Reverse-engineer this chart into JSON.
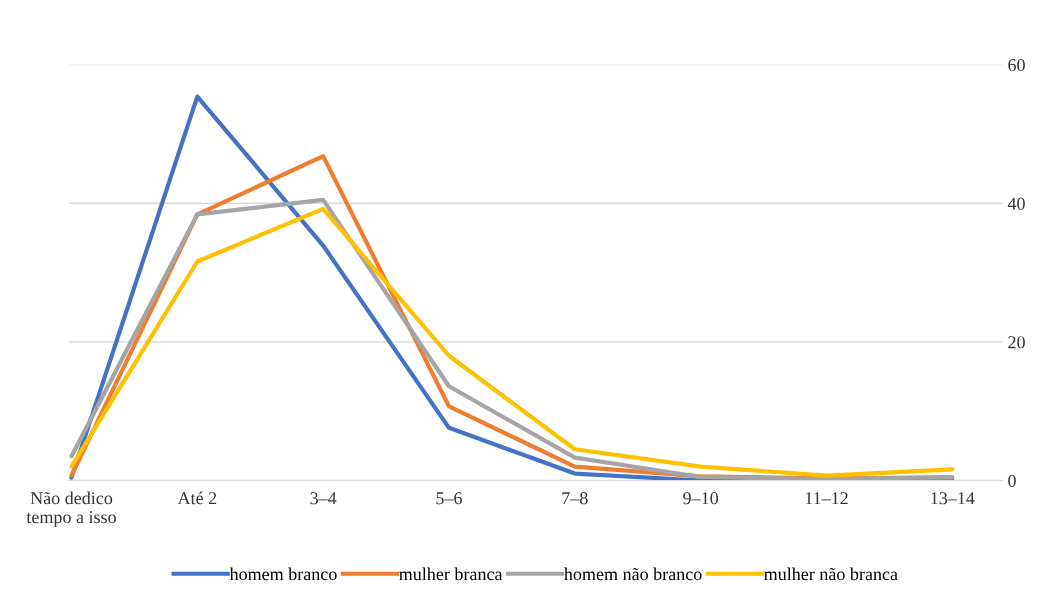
{
  "chart_data": {
    "type": "line",
    "categories": [
      "Não dedico\ntempo a isso",
      "Até 2",
      "3–4",
      "5–6",
      "7–8",
      "9–10",
      "11–12",
      "13–14"
    ],
    "series": [
      {
        "name": "homem branco",
        "color": "#4472c4",
        "values": [
          0.4,
          55.4,
          33.9,
          7.6,
          1,
          0,
          0,
          0
        ]
      },
      {
        "name": "mulher branca",
        "color": "#ed7d31",
        "values": [
          0.7,
          38.4,
          46.8,
          10.7,
          2,
          0.6,
          0.3,
          0.4
        ]
      },
      {
        "name": "homem não branco",
        "color": "#a5a5a5",
        "values": [
          3.5,
          38.4,
          40.5,
          13.6,
          3.3,
          0.5,
          0.2,
          0.5
        ]
      },
      {
        "name": "mulher não branca",
        "color": "#ffc000",
        "values": [
          2,
          31.6,
          39.2,
          18,
          4.5,
          2,
          0.7,
          1.6
        ]
      }
    ],
    "ylim": [
      0,
      60
    ],
    "yticks": [
      0,
      20,
      40,
      60
    ],
    "grid": "y",
    "legend": "bottom",
    "marker": "none",
    "line_style": "solid"
  }
}
